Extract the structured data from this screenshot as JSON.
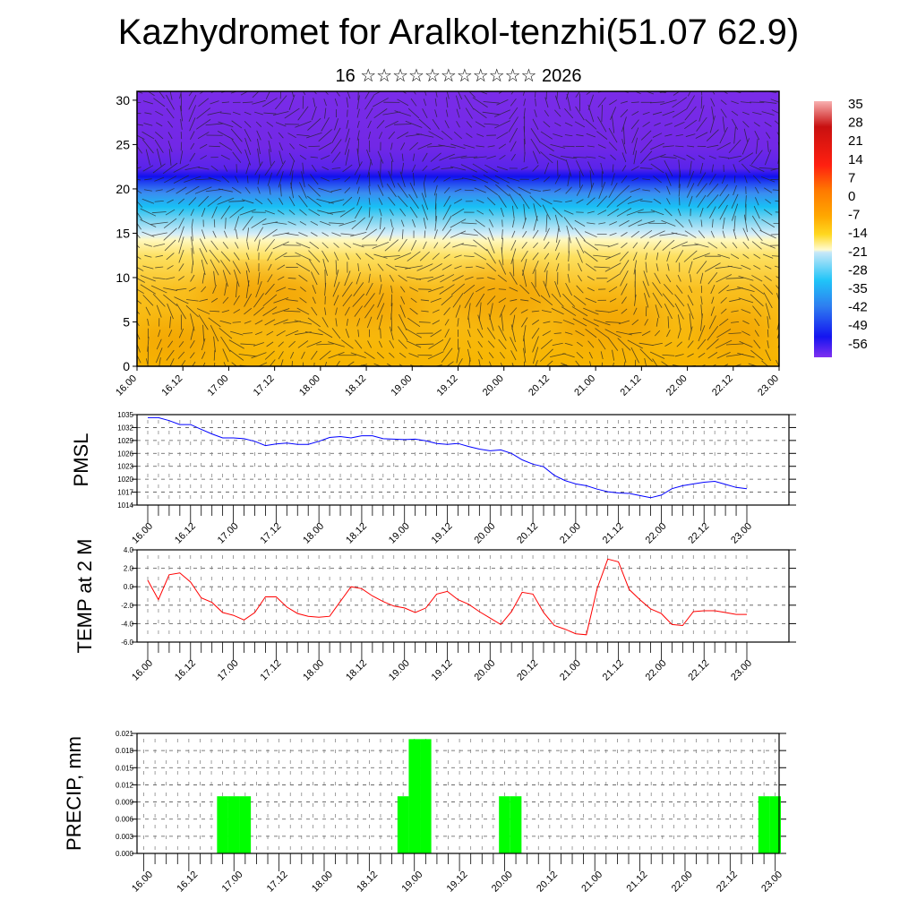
{
  "header": {
    "title": "Kazhydromet for Aralkol-tenzhi(51.07 62.9)",
    "subtitle": "16 ☆☆☆☆☆☆☆☆☆☆☆ 2026"
  },
  "x_tick_labels": [
    "16.00",
    "16.12",
    "17.00",
    "17.12",
    "18.00",
    "18.12",
    "19.00",
    "19.12",
    "20.00",
    "20.12",
    "21.00",
    "21.12",
    "22.00",
    "22.12",
    "23.00"
  ],
  "chart_data": [
    {
      "type": "heatmap",
      "name": "temperature-cross-section",
      "ylabel": "",
      "yticks": [
        "0",
        "5",
        "10",
        "15",
        "20",
        "25",
        "30"
      ],
      "ylim": [
        0,
        31
      ],
      "colorbar_labels": [
        "35",
        "28",
        "21",
        "14",
        "7",
        "0",
        "-7",
        "-14",
        "-21",
        "-28",
        "-35",
        "-42",
        "-49",
        "-56"
      ],
      "colors": {
        "warm": "#f6b300",
        "pale": "#fffbd0",
        "cyan": "#1ec8f5",
        "blue": "#1a1af0",
        "purple": "#7428e6"
      }
    },
    {
      "type": "line",
      "name": "pmsl",
      "ylabel": "PMSL",
      "ylim": [
        1014,
        1035
      ],
      "yticks": [
        "1014",
        "1017",
        "1020",
        "1023",
        "1026",
        "1029",
        "1032",
        "1035"
      ],
      "color": "#0000ff",
      "values": [
        1034.3,
        1034.3,
        1033.6,
        1032.7,
        1032.7,
        1031.6,
        1030.5,
        1029.6,
        1029.6,
        1029.4,
        1028.8,
        1027.8,
        1028.2,
        1028.4,
        1028.1,
        1028.1,
        1028.8,
        1029.7,
        1029.9,
        1029.6,
        1030.1,
        1030.1,
        1029.4,
        1029.3,
        1029.2,
        1029.3,
        1028.9,
        1028.3,
        1028.1,
        1028.3,
        1027.6,
        1027.0,
        1026.6,
        1026.8,
        1026.0,
        1024.5,
        1023.5,
        1022.9,
        1020.9,
        1019.7,
        1018.9,
        1018.5,
        1017.7,
        1017.1,
        1016.8,
        1016.7,
        1016.2,
        1015.7,
        1016.3,
        1017.8,
        1018.5,
        1018.9,
        1019.3,
        1019.5,
        1018.8,
        1018.1,
        1017.8
      ]
    },
    {
      "type": "line",
      "name": "temp-2m",
      "ylabel": "TEMP at 2 M",
      "ylim": [
        -6,
        4
      ],
      "yticks": [
        "-6.0",
        "-4.0",
        "-2.0",
        "0.0",
        "2.0",
        "4.0"
      ],
      "color": "#ff0000",
      "values": [
        0.7,
        -1.4,
        1.3,
        1.5,
        0.5,
        -1.2,
        -1.7,
        -2.8,
        -3.1,
        -3.6,
        -2.8,
        -1.1,
        -1.1,
        -2.2,
        -2.9,
        -3.2,
        -3.3,
        -3.2,
        -1.6,
        0.0,
        -0.2,
        -1.0,
        -1.6,
        -2.1,
        -2.3,
        -2.8,
        -2.3,
        -0.8,
        -0.5,
        -1.4,
        -1.9,
        -2.7,
        -3.4,
        -4.1,
        -2.7,
        -0.6,
        -0.8,
        -2.8,
        -4.2,
        -4.6,
        -5.1,
        -5.2,
        -0.2,
        3.0,
        2.7,
        -0.3,
        -1.4,
        -2.4,
        -2.9,
        -4.1,
        -4.2,
        -2.7,
        -2.6,
        -2.6,
        -2.8,
        -3.0,
        -3.0
      ]
    },
    {
      "type": "bar",
      "name": "precip",
      "ylabel": "PRECIP, mm",
      "ylim": [
        0,
        0.021
      ],
      "yticks": [
        "0.000",
        "0.003",
        "0.006",
        "0.009",
        "0.012",
        "0.015",
        "0.018",
        "0.021"
      ],
      "color": "#00ff00",
      "values": [
        0,
        0,
        0,
        0,
        0,
        0,
        0,
        0.01,
        0.01,
        0.01,
        0,
        0,
        0,
        0,
        0,
        0,
        0,
        0,
        0,
        0,
        0,
        0,
        0,
        0.01,
        0.02,
        0.02,
        0,
        0,
        0,
        0,
        0,
        0,
        0.01,
        0.01,
        0,
        0,
        0,
        0,
        0,
        0,
        0,
        0,
        0,
        0,
        0,
        0,
        0,
        0,
        0,
        0,
        0,
        0,
        0,
        0,
        0,
        0.01,
        0.01
      ]
    }
  ]
}
